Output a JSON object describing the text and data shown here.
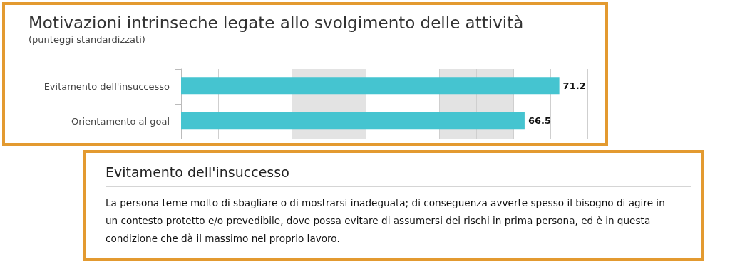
{
  "chart_data": [
    {
      "type": "bar",
      "title": "Motivazioni intrinseche legate allo svolgimento delle attività",
      "subtitle": "(punteggi standardizzati)",
      "orientation": "horizontal",
      "categories": [
        "Evitamento dell'insuccesso",
        "Orientamento al goal"
      ],
      "values": [
        71.2,
        66.5
      ],
      "color": "#45c4d0",
      "data_labels": true,
      "xlim": [
        20,
        75
      ],
      "xticks": [
        {
          "value": 20,
          "label": null
        },
        {
          "value": 25,
          "label": null
        },
        {
          "value": 30,
          "label": null
        },
        {
          "value": 35,
          "label": null
        },
        {
          "value": 40,
          "label": null
        },
        {
          "value": 45,
          "label": null
        },
        {
          "value": 50,
          "label": null
        },
        {
          "value": 55,
          "label": null
        },
        {
          "value": 60,
          "label": null
        },
        {
          "value": 65,
          "label": null
        },
        {
          "value": 70,
          "label": null
        },
        {
          "value": 75,
          "label": null
        }
      ],
      "grid": "x",
      "tick_labels": "y",
      "bands": [
        {
          "axis": "x",
          "from": 35,
          "to": 45,
          "color": "#e3e3e3"
        },
        {
          "axis": "x",
          "from": 55,
          "to": 65,
          "color": "#e3e3e3"
        }
      ]
    },
    {
      "type": "other",
      "title": "Evitamento dell'insuccesso",
      "annotations": [
        "La persona teme molto di sbagliare o di mostrarsi inadeguata; di conseguenza avverte spesso il bisogno di agire in un contesto protetto e/o prevedibile, dove possa evitare di assumersi dei rischi in prima persona, ed è in questa condizione che dà il massimo nel proprio lavoro."
      ]
    }
  ]
}
